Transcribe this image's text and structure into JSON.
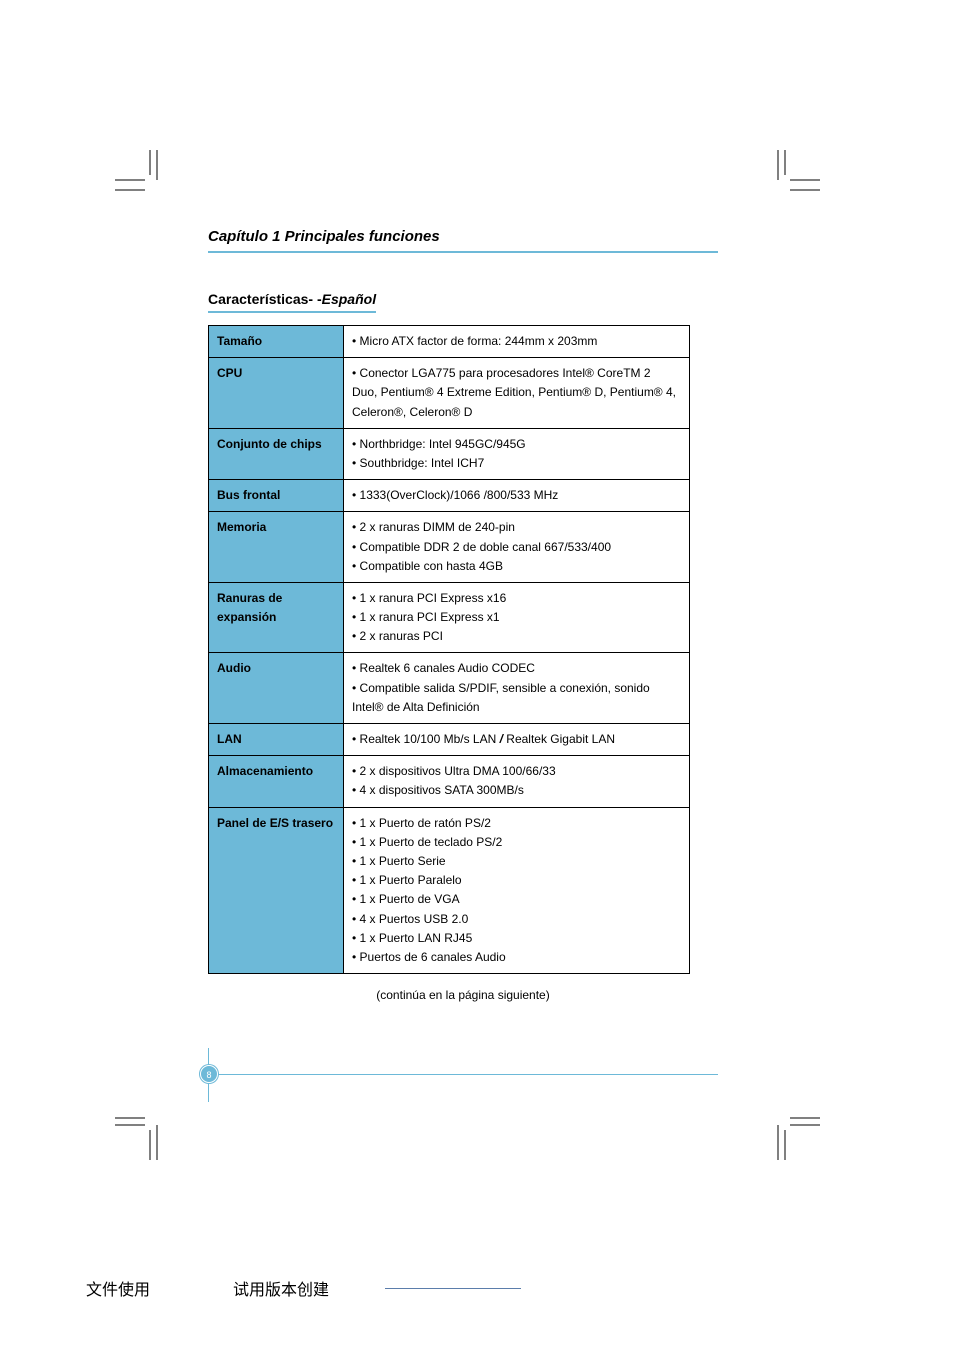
{
  "chapter_title": "Capítulo 1 Principales funciones",
  "section_title_main": "Características",
  "section_title_sep": "- -",
  "section_title_lang": "Español",
  "continue_note": "(continúa en la página siguiente)",
  "page_number": "8",
  "footer_text_1": "文件使用",
  "footer_text_2": "试用版本创建",
  "colors": {
    "header_accent": "#6db9d8",
    "label_bg": "#6db9d8",
    "text": "#000000",
    "background": "#ffffff"
  },
  "typography": {
    "chapter_fontsize": 15,
    "section_fontsize": 14,
    "table_fontsize": 12,
    "footer_fontsize": 16
  },
  "table": {
    "rows": [
      {
        "label": "Tamaño",
        "lines": [
          "• Micro ATX  factor de forma: 244mm x 203mm"
        ]
      },
      {
        "label": "CPU",
        "lines": [
          "• Conector LGA775 para procesadores Intel® CoreTM 2",
          "  Duo, Pentium® 4 Extreme Edition, Pentium® D, Pentium® 4,",
          "  Celeron®, Celeron® D"
        ]
      },
      {
        "label": "Conjunto de chips",
        "lines": [
          "• Northbridge: Intel 945GC/945G",
          "• Southbridge: Intel ICH7"
        ]
      },
      {
        "label": "Bus frontal",
        "lines": [
          "• 1333(OverClock)/1066 /800/533 MHz"
        ]
      },
      {
        "label": "Memoria",
        "lines": [
          "• 2 x ranuras DIMM de 240-pin",
          "• Compatible DDR 2 de doble canal 667/533/400",
          "• Compatible con hasta 4GB"
        ]
      },
      {
        "label": "Ranuras de expansión",
        "lines": [
          "• 1 x ranura PCI Express x16",
          "• 1 x ranura PCI Express x1",
          "• 2 x ranuras PCI"
        ]
      },
      {
        "label": "Audio",
        "lines": [
          "• Realtek 6 canales Audio CODEC",
          "• Compatible salida S/PDIF, sensible a conexión, sonido",
          "  Intel® de Alta Definición"
        ]
      },
      {
        "label": "LAN",
        "lines": [
          "• Realtek 10/100 Mb/s LAN / Realtek Gigabit LAN"
        ]
      },
      {
        "label": "Almacenamiento",
        "lines": [
          "• 2 x dispositivos Ultra DMA 100/66/33",
          "• 4 x dispositivos SATA 300MB/s"
        ]
      },
      {
        "label": "Panel de E/S trasero",
        "lines": [
          "• 1 x Puerto de ratón PS/2",
          "• 1 x Puerto de teclado PS/2",
          "• 1 x Puerto Serie",
          "• 1 x Puerto Paralelo",
          "• 1 x Puerto de VGA",
          "• 4 x Puertos USB 2.0",
          "• 1 x Puerto LAN RJ45",
          "• Puertos de 6 canales Audio"
        ]
      }
    ]
  }
}
